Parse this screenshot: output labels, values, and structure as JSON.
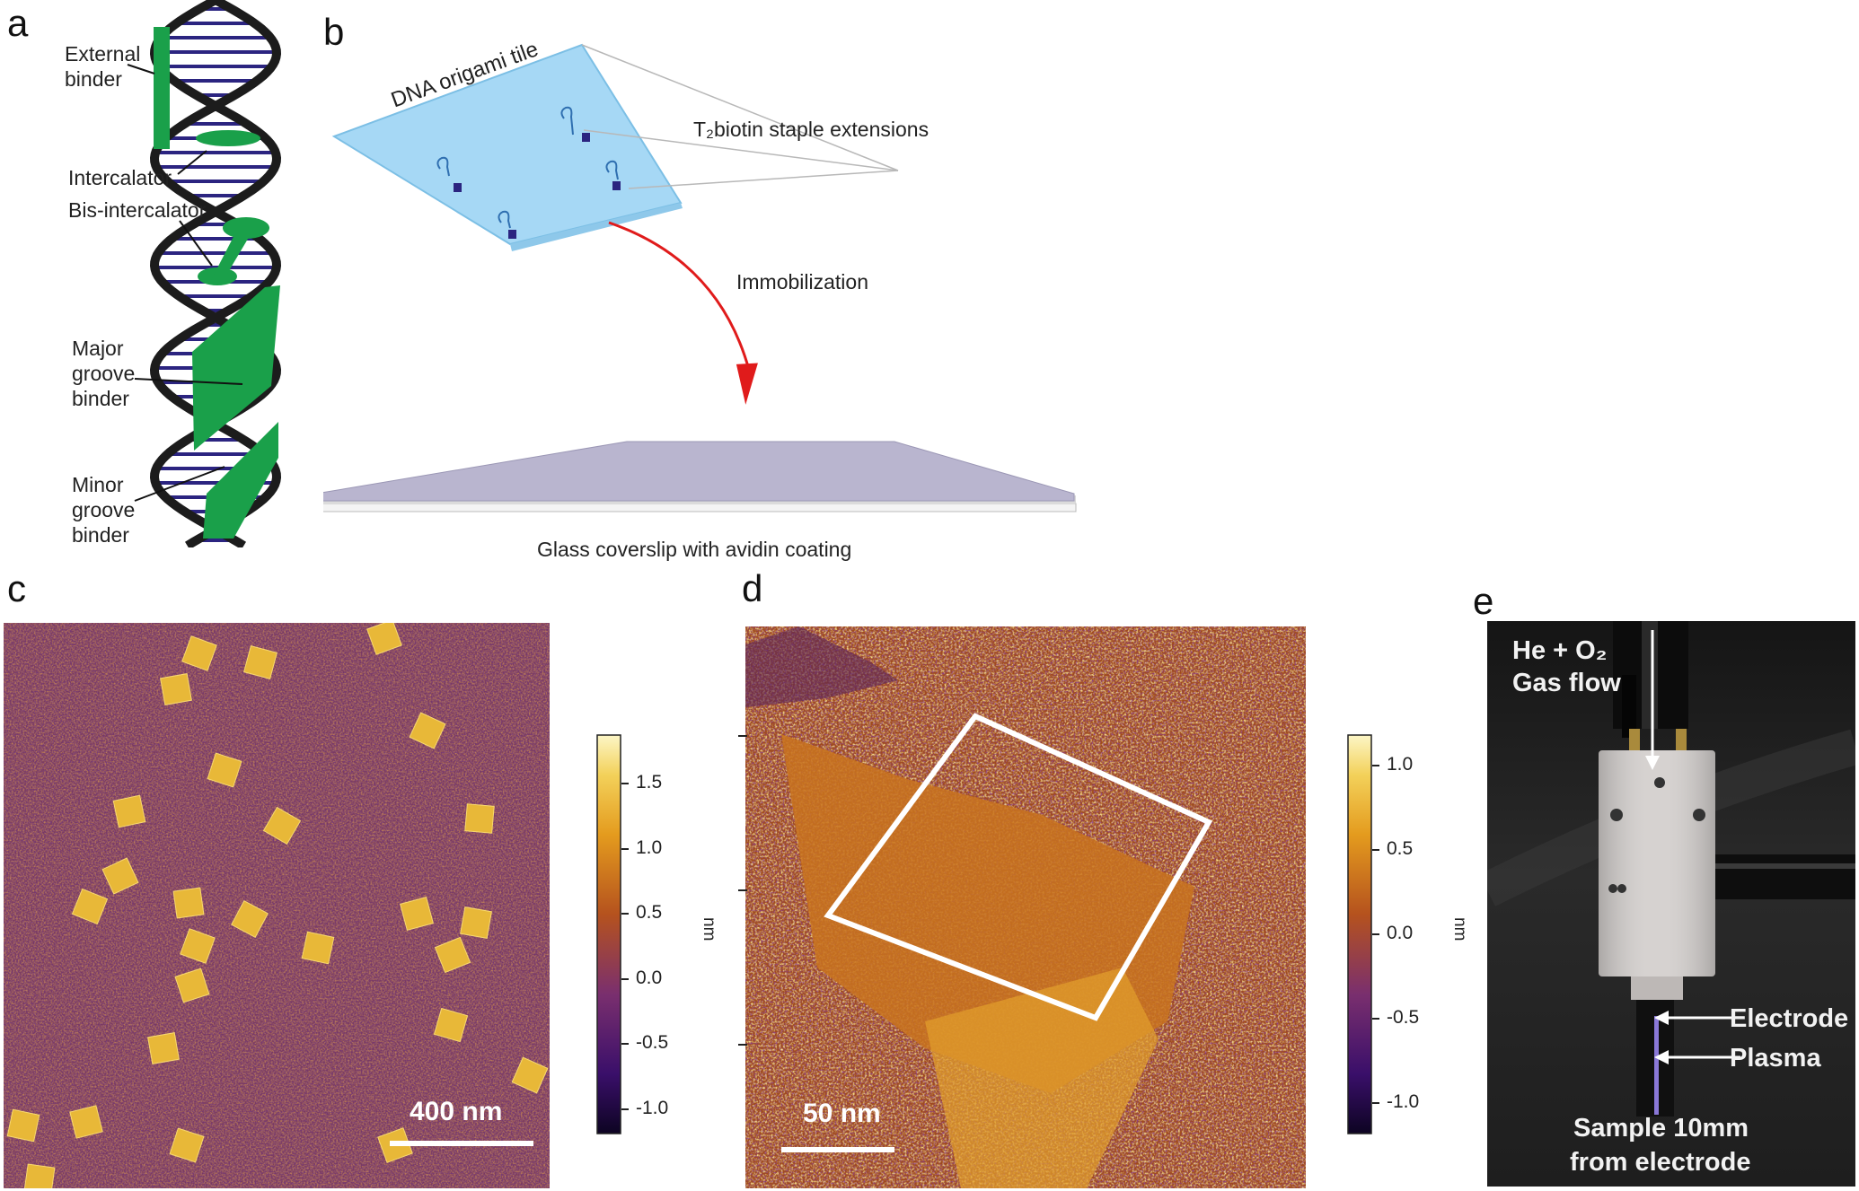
{
  "panels": {
    "a": {
      "letter": "a",
      "labels": {
        "external_binder": [
          "External",
          "binder"
        ],
        "intercalator": "Intercalator",
        "bis_intercalator": "Bis-intercalator",
        "major_groove": [
          "Major",
          "groove",
          "binder"
        ],
        "minor_groove": [
          "Minor",
          "groove",
          "binder"
        ]
      }
    },
    "b": {
      "letter": "b",
      "tile_label": "DNA origami tile",
      "staple_label": "T₂biotin staple extensions",
      "arrow_label": "Immobilization",
      "coverslip_label": "Glass coverslip with avidin coating"
    },
    "c": {
      "letter": "c",
      "scalebar": "400 nm",
      "colorbar_ticks": [
        "1.5",
        "1.0",
        "0.5",
        "0.0",
        "-0.5",
        "-1.0"
      ],
      "colorbar_unit": "nm"
    },
    "d": {
      "letter": "d",
      "scalebar": "50 nm",
      "colorbar_ticks": [
        "1.0",
        "0.5",
        "0.0",
        "-0.5",
        "-1.0"
      ],
      "colorbar_unit": "nm"
    },
    "e": {
      "letter": "e",
      "gas_line1": "He + O₂",
      "gas_line2": "Gas flow",
      "electrode": "Electrode",
      "plasma": "Plasma",
      "sample_line1": "Sample 10mm",
      "sample_line2": "from electrode"
    }
  },
  "colors": {
    "dna_backbone": "#1c1c1c",
    "base_pairs": "#2b2480",
    "binder_green": "#1aa04a",
    "origami_blue": "#a6d8f5",
    "coverslip_lavender": "#b9b5cf",
    "arrow_red": "#e01b1b",
    "afm_low": "#2a0a4a",
    "afm_mid": "#a0521c",
    "afm_high": "#f5e07a"
  }
}
